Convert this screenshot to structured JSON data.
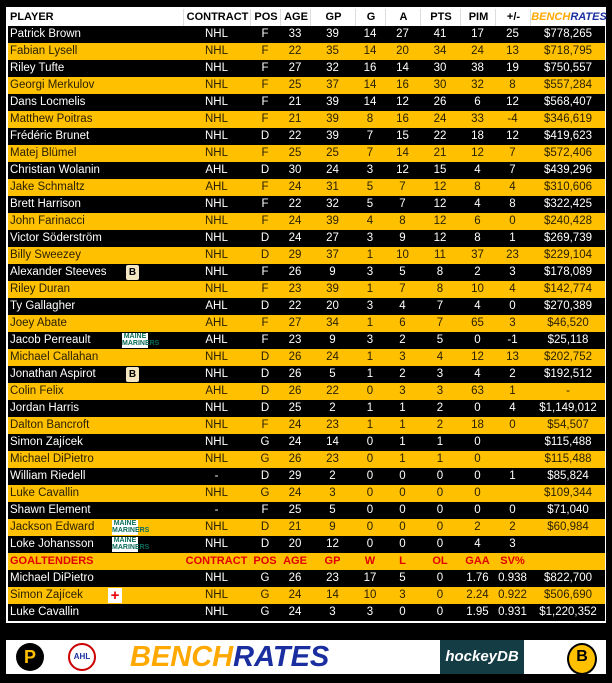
{
  "header": {
    "player": "PLAYER",
    "contract": "CONTRACT",
    "pos": "POS",
    "age": "AGE",
    "gp": "GP",
    "g": "G",
    "a": "A",
    "pts": "PTS",
    "pim": "PIM",
    "pm": "+/-",
    "brand_a": "BENCH",
    "brand_b": "RATES"
  },
  "skaters": [
    [
      "Patrick Brown",
      "NHL",
      "F",
      "33",
      "39",
      "14",
      "27",
      "41",
      "17",
      "25",
      "$778,265",
      ""
    ],
    [
      "Fabian Lysell",
      "NHL",
      "F",
      "22",
      "35",
      "14",
      "20",
      "34",
      "24",
      "13",
      "$718,795",
      ""
    ],
    [
      "Riley Tufte",
      "NHL",
      "F",
      "27",
      "32",
      "16",
      "14",
      "30",
      "38",
      "19",
      "$750,557",
      ""
    ],
    [
      "Georgi Merkulov",
      "NHL",
      "F",
      "25",
      "37",
      "14",
      "16",
      "30",
      "32",
      "8",
      "$557,284",
      ""
    ],
    [
      "Dans Locmelis",
      "NHL",
      "F",
      "21",
      "39",
      "14",
      "12",
      "26",
      "6",
      "12",
      "$568,407",
      ""
    ],
    [
      "Matthew Poitras",
      "NHL",
      "F",
      "21",
      "39",
      "8",
      "16",
      "24",
      "33",
      "-4",
      "$346,619",
      ""
    ],
    [
      "Frédéric Brunet",
      "NHL",
      "D",
      "22",
      "39",
      "7",
      "15",
      "22",
      "18",
      "12",
      "$419,623",
      ""
    ],
    [
      "Matej Blümel",
      "NHL",
      "F",
      "25",
      "25",
      "7",
      "14",
      "21",
      "12",
      "7",
      "$572,406",
      ""
    ],
    [
      "Christian Wolanin",
      "AHL",
      "D",
      "30",
      "24",
      "3",
      "12",
      "15",
      "4",
      "7",
      "$439,296",
      ""
    ],
    [
      "Jake Schmaltz",
      "AHL",
      "F",
      "24",
      "31",
      "5",
      "7",
      "12",
      "8",
      "4",
      "$310,606",
      ""
    ],
    [
      "Brett Harrison",
      "NHL",
      "F",
      "22",
      "32",
      "5",
      "7",
      "12",
      "4",
      "8",
      "$322,425",
      ""
    ],
    [
      "John Farinacci",
      "NHL",
      "F",
      "24",
      "39",
      "4",
      "8",
      "12",
      "6",
      "0",
      "$240,428",
      ""
    ],
    [
      "Victor Söderström",
      "NHL",
      "D",
      "24",
      "27",
      "3",
      "9",
      "12",
      "8",
      "1",
      "$269,739",
      ""
    ],
    [
      "Billy Sweezey",
      "NHL",
      "D",
      "29",
      "37",
      "1",
      "10",
      "11",
      "37",
      "23",
      "$229,104",
      ""
    ],
    [
      "Alexander Steeves",
      "NHL",
      "F",
      "26",
      "9",
      "3",
      "5",
      "8",
      "2",
      "3",
      "$178,089",
      "bruins"
    ],
    [
      "Riley Duran",
      "NHL",
      "F",
      "23",
      "39",
      "1",
      "7",
      "8",
      "10",
      "4",
      "$142,774",
      ""
    ],
    [
      "Ty Gallagher",
      "AHL",
      "D",
      "22",
      "20",
      "3",
      "4",
      "7",
      "4",
      "0",
      "$270,389",
      ""
    ],
    [
      "Joey Abate",
      "AHL",
      "F",
      "27",
      "34",
      "1",
      "6",
      "7",
      "65",
      "3",
      "$46,520",
      ""
    ],
    [
      "Jacob Perreault",
      "AHL",
      "F",
      "23",
      "9",
      "3",
      "2",
      "5",
      "0",
      "-1",
      "$25,118",
      "mariners"
    ],
    [
      "Michael Callahan",
      "NHL",
      "D",
      "26",
      "24",
      "1",
      "3",
      "4",
      "12",
      "13",
      "$202,752",
      ""
    ],
    [
      "Jonathan Aspirot",
      "NHL",
      "D",
      "26",
      "5",
      "1",
      "2",
      "3",
      "4",
      "2",
      "$192,512",
      "bruins"
    ],
    [
      "Colin Felix",
      "AHL",
      "D",
      "26",
      "22",
      "0",
      "3",
      "3",
      "63",
      "1",
      "-",
      ""
    ],
    [
      "Jordan Harris",
      "NHL",
      "D",
      "25",
      "2",
      "1",
      "1",
      "2",
      "0",
      "4",
      "$1,149,012",
      ""
    ],
    [
      "Dalton Bancroft",
      "NHL",
      "F",
      "24",
      "23",
      "1",
      "1",
      "2",
      "18",
      "0",
      "$54,507",
      ""
    ],
    [
      "Simon Zajícek",
      "NHL",
      "G",
      "24",
      "14",
      "0",
      "1",
      "1",
      "0",
      "",
      "$115,488",
      ""
    ],
    [
      "Michael DiPietro",
      "NHL",
      "G",
      "26",
      "23",
      "0",
      "1",
      "1",
      "0",
      "",
      "$115,488",
      ""
    ],
    [
      "William Riedell",
      "-",
      "D",
      "29",
      "2",
      "0",
      "0",
      "0",
      "0",
      "1",
      "$85,824",
      ""
    ],
    [
      "Luke Cavallin",
      "NHL",
      "G",
      "24",
      "3",
      "0",
      "0",
      "0",
      "0",
      "",
      "$109,344",
      ""
    ],
    [
      "Shawn Element",
      "-",
      "F",
      "25",
      "5",
      "0",
      "0",
      "0",
      "0",
      "0",
      "$71,040",
      ""
    ],
    [
      "Jackson Edward",
      "NHL",
      "D",
      "21",
      "9",
      "0",
      "0",
      "0",
      "2",
      "2",
      "$60,984",
      "mariners"
    ],
    [
      "Loke Johansson",
      "NHL",
      "D",
      "20",
      "12",
      "0",
      "0",
      "0",
      "4",
      "3",
      "",
      "mariners"
    ]
  ],
  "goalie_header": {
    "player": "GOALTENDERS",
    "contract": "CONTRACT",
    "pos": "POS",
    "age": "AGE",
    "gp": "GP",
    "w": "W",
    "l": "L",
    "ol": "OL",
    "gaa": "GAA",
    "sv": "SV%"
  },
  "goalies": [
    [
      "Michael DiPietro",
      "NHL",
      "G",
      "26",
      "23",
      "17",
      "5",
      "0",
      "1.76",
      "0.938",
      "$822,700",
      ""
    ],
    [
      "Simon Zajícek",
      "NHL",
      "G",
      "24",
      "14",
      "10",
      "3",
      "0",
      "2.24",
      "0.922",
      "$506,690",
      "injury"
    ],
    [
      "Luke Cavallin",
      "NHL",
      "G",
      "24",
      "3",
      "3",
      "0",
      "0",
      "1.95",
      "0.931",
      "$1,220,352",
      ""
    ]
  ],
  "badges": {
    "bruins": "B",
    "mariners": "MAINE MARINERS",
    "injury": "+"
  },
  "footer": {
    "brand_a": "BENCH",
    "brand_b": "RATES",
    "hockeydb": "hockeyDB",
    "p_logo": "P",
    "b_logo": "B",
    "ahl": "AHL"
  },
  "colors": {
    "yellow": "#ffc000",
    "black": "#000000",
    "brand_orange": "#ffa800",
    "brand_blue": "#1a2ea0",
    "goalie_red": "#e00000"
  }
}
